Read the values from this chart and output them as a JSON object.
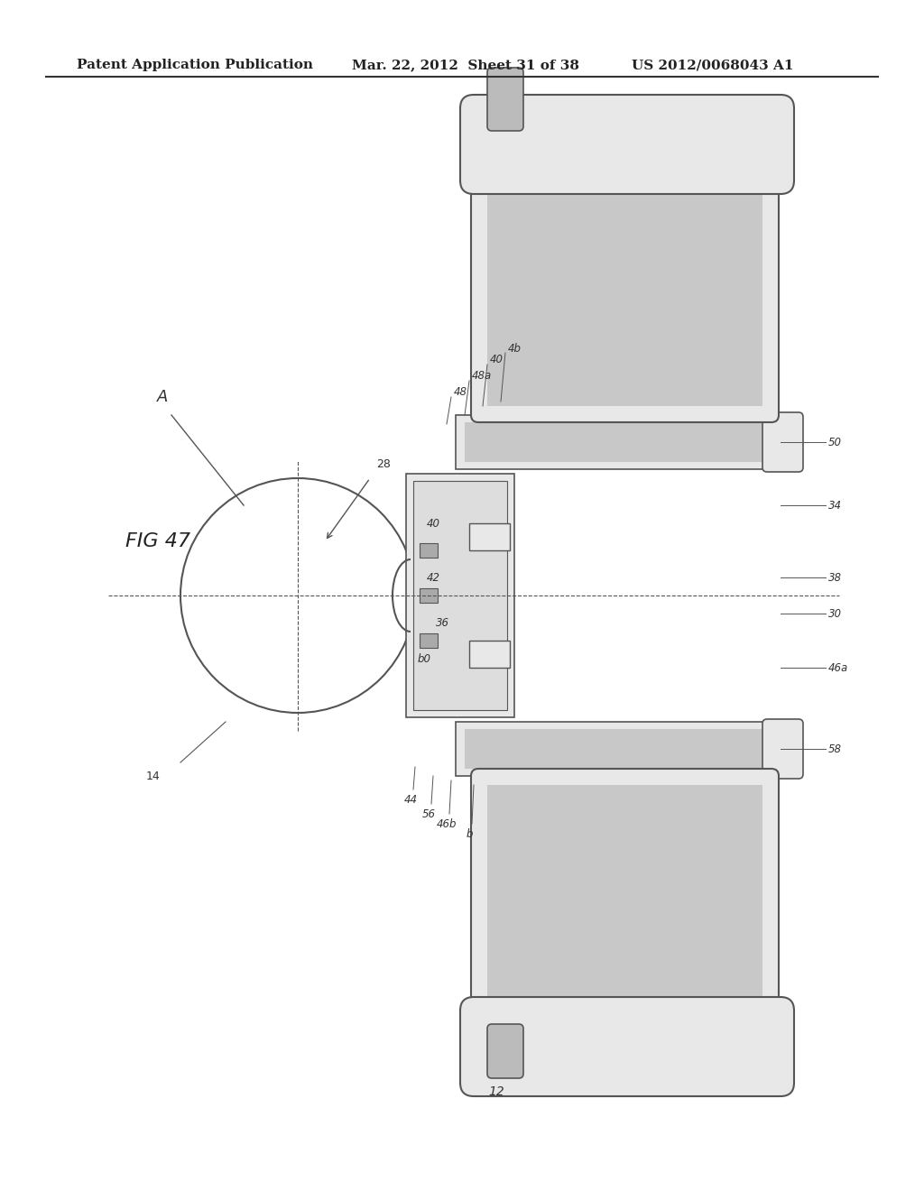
{
  "header_left": "Patent Application Publication",
  "header_mid": "Mar. 22, 2012  Sheet 31 of 38",
  "header_right": "US 2012/0068043 A1",
  "fig_label": "FIG 47",
  "bg_color": "#ffffff",
  "line_color": "#555555",
  "gray_fill": "#c8c8c8",
  "light_gray": "#e8e8e8",
  "dark_gray": "#888888"
}
